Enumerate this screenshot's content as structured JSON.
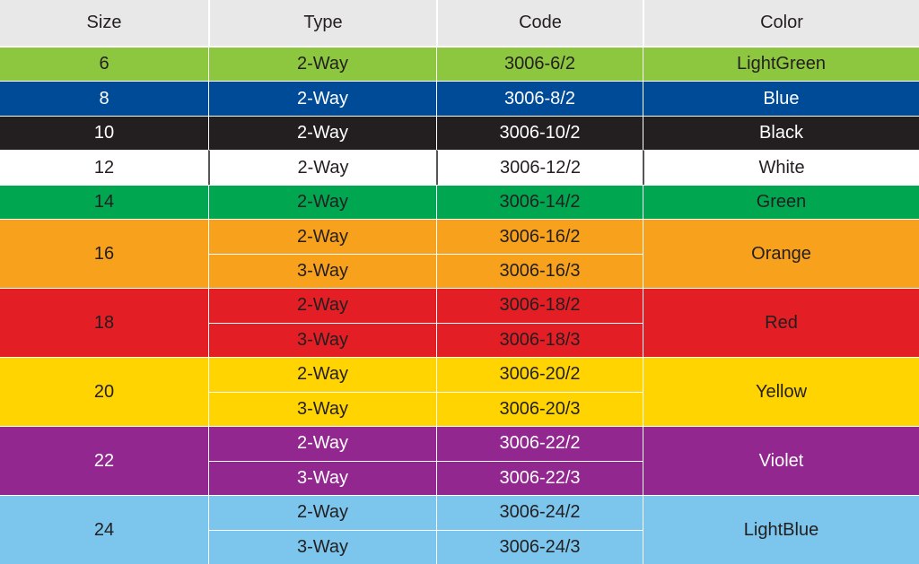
{
  "header": [
    "Size",
    "Type",
    "Code",
    "Color"
  ],
  "groups": [
    {
      "size": "6",
      "color": "LightGreen",
      "bg": "#8dc63f",
      "fg": "#231f20",
      "variants": [
        {
          "type": "2-Way",
          "code": "3006-6/2"
        }
      ]
    },
    {
      "size": "8",
      "color": "Blue",
      "bg": "#004b97",
      "fg": "#ffffff",
      "variants": [
        {
          "type": "2-Way",
          "code": "3006-8/2"
        }
      ]
    },
    {
      "size": "10",
      "color": "Black",
      "bg": "#231f20",
      "fg": "#ffffff",
      "variants": [
        {
          "type": "2-Way",
          "code": "3006-10/2"
        }
      ]
    },
    {
      "size": "12",
      "color": "White",
      "bg": "#ffffff",
      "fg": "#231f20",
      "variants": [
        {
          "type": "2-Way",
          "code": "3006-12/2"
        }
      ]
    },
    {
      "size": "14",
      "color": "Green",
      "bg": "#00a650",
      "fg": "#231f20",
      "variants": [
        {
          "type": "2-Way",
          "code": "3006-14/2"
        }
      ]
    },
    {
      "size": "16",
      "color": "Orange",
      "bg": "#f8a11c",
      "fg": "#231f20",
      "variants": [
        {
          "type": "2-Way",
          "code": "3006-16/2"
        },
        {
          "type": "3-Way",
          "code": "3006-16/3"
        }
      ]
    },
    {
      "size": "18",
      "color": "Red",
      "bg": "#e31e25",
      "fg": "#231f20",
      "variants": [
        {
          "type": "2-Way",
          "code": "3006-18/2"
        },
        {
          "type": "3-Way",
          "code": "3006-18/3"
        }
      ]
    },
    {
      "size": "20",
      "color": "Yellow",
      "bg": "#ffd400",
      "fg": "#231f20",
      "variants": [
        {
          "type": "2-Way",
          "code": "3006-20/2"
        },
        {
          "type": "3-Way",
          "code": "3006-20/3"
        }
      ]
    },
    {
      "size": "22",
      "color": "Violet",
      "bg": "#92278f",
      "fg": "#ffffff",
      "variants": [
        {
          "type": "2-Way",
          "code": "3006-22/2"
        },
        {
          "type": "3-Way",
          "code": "3006-22/3"
        }
      ]
    },
    {
      "size": "24",
      "color": "LightBlue",
      "bg": "#7cc5ec",
      "fg": "#231f20",
      "variants": [
        {
          "type": "2-Way",
          "code": "3006-24/2"
        },
        {
          "type": "3-Way",
          "code": "3006-24/3"
        }
      ]
    }
  ]
}
